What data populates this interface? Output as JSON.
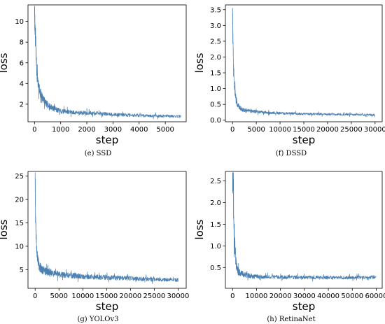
{
  "chart_data": [
    {
      "id": "ssd",
      "type": "line",
      "caption": "(e) SSD",
      "xlabel": "step",
      "ylabel": "loss",
      "xlim": [
        -250,
        5800
      ],
      "ylim": [
        0.3,
        11.6
      ],
      "xticks": [
        0,
        1000,
        2000,
        3000,
        4000,
        5000
      ],
      "xtick_labels": [
        "0",
        "1000",
        "2000",
        "3000",
        "4000",
        "5000"
      ],
      "yticks": [
        2,
        4,
        6,
        8,
        10
      ],
      "ytick_labels": [
        "2",
        "4",
        "6",
        "8",
        "10"
      ],
      "grid": false,
      "series": [
        {
          "color": "#4a7fb0",
          "x": [
            0,
            20,
            40,
            60,
            80,
            100,
            150,
            200,
            300,
            400,
            500,
            700,
            1000,
            1500,
            2000,
            2500,
            3000,
            3500,
            4000,
            4500,
            5000,
            5600
          ],
          "y": [
            11.2,
            9.5,
            8.0,
            6.8,
            5.5,
            4.6,
            3.8,
            3.3,
            2.6,
            2.2,
            1.9,
            1.6,
            1.35,
            1.2,
            1.15,
            1.1,
            1.0,
            0.95,
            0.92,
            0.88,
            0.85,
            0.82
          ],
          "noise": [
            1.6,
            1.3,
            1.1,
            1.0,
            0.9,
            0.8,
            0.7,
            0.6,
            0.5,
            0.45,
            0.4,
            0.35,
            0.3,
            0.25,
            0.25,
            0.22,
            0.2,
            0.2,
            0.2,
            0.18,
            0.18,
            0.18
          ]
        }
      ]
    },
    {
      "id": "dssd",
      "type": "line",
      "caption": "(f) DSSD",
      "xlabel": "step",
      "ylabel": "loss",
      "xlim": [
        -1500,
        31500
      ],
      "ylim": [
        -0.05,
        3.65
      ],
      "xticks": [
        0,
        5000,
        10000,
        15000,
        20000,
        25000,
        30000
      ],
      "xtick_labels": [
        "0",
        "5000",
        "10000",
        "15000",
        "20000",
        "25000",
        "30000"
      ],
      "yticks": [
        0.0,
        0.5,
        1.0,
        1.5,
        2.0,
        2.5,
        3.0,
        3.5
      ],
      "ytick_labels": [
        "0.0",
        "0.5",
        "1.0",
        "1.5",
        "2.0",
        "2.5",
        "3.0",
        "3.5"
      ],
      "grid": false,
      "series": [
        {
          "color": "#4a7fb0",
          "x": [
            0,
            100,
            200,
            400,
            700,
            1000,
            1500,
            2000,
            3000,
            5000,
            8000,
            10000,
            15000,
            20000,
            25000,
            30000
          ],
          "y": [
            3.45,
            2.6,
            1.8,
            1.1,
            0.7,
            0.5,
            0.4,
            0.33,
            0.3,
            0.27,
            0.24,
            0.22,
            0.2,
            0.19,
            0.18,
            0.17
          ],
          "noise": [
            0.4,
            0.35,
            0.3,
            0.25,
            0.18,
            0.12,
            0.09,
            0.08,
            0.07,
            0.06,
            0.05,
            0.05,
            0.045,
            0.04,
            0.04,
            0.04
          ]
        }
      ]
    },
    {
      "id": "yolov3",
      "type": "line",
      "caption": "(g) YOLOv3",
      "xlabel": "step",
      "ylabel": "loss",
      "xlim": [
        -1500,
        31700
      ],
      "ylim": [
        1.0,
        26.0
      ],
      "xticks": [
        0,
        5000,
        10000,
        15000,
        20000,
        25000,
        30000
      ],
      "xtick_labels": [
        "0",
        "5000",
        "10000",
        "15000",
        "20000",
        "25000",
        "30000"
      ],
      "yticks": [
        5,
        10,
        15,
        20,
        25
      ],
      "ytick_labels": [
        "5",
        "10",
        "15",
        "20",
        "25"
      ],
      "grid": false,
      "series": [
        {
          "color": "#4a7fb0",
          "x": [
            0,
            100,
            200,
            400,
            700,
            1000,
            1500,
            2000,
            3000,
            5000,
            8000,
            10000,
            15000,
            20000,
            25000,
            30000
          ],
          "y": [
            24.5,
            16.0,
            12.0,
            8.5,
            6.5,
            5.5,
            5.0,
            4.7,
            4.4,
            4.0,
            3.7,
            3.5,
            3.3,
            3.1,
            2.9,
            2.8
          ],
          "noise": [
            3.0,
            2.5,
            2.2,
            1.8,
            1.5,
            1.3,
            1.2,
            1.1,
            1.0,
            0.9,
            0.8,
            0.7,
            0.65,
            0.6,
            0.55,
            0.5
          ]
        }
      ]
    },
    {
      "id": "retinanet",
      "type": "line",
      "caption": "(h) RetinaNet",
      "xlabel": "step",
      "ylabel": "loss",
      "xlim": [
        -3000,
        62500
      ],
      "ylim": [
        0.02,
        2.72
      ],
      "xticks": [
        0,
        10000,
        20000,
        30000,
        40000,
        50000,
        60000
      ],
      "xtick_labels": [
        "0",
        "10000",
        "20000",
        "30000",
        "40000",
        "50000",
        "60000"
      ],
      "yticks": [
        0.5,
        1.0,
        1.5,
        2.0,
        2.5
      ],
      "ytick_labels": [
        "0.5",
        "1.0",
        "1.5",
        "2.0",
        "2.5"
      ],
      "grid": false,
      "series": [
        {
          "color": "#4a7fb0",
          "x": [
            0,
            300,
            600,
            1000,
            1500,
            2000,
            3000,
            5000,
            8000,
            10000,
            20000,
            30000,
            40000,
            50000,
            60000
          ],
          "y": [
            2.55,
            2.6,
            1.3,
            0.9,
            0.6,
            0.45,
            0.38,
            0.33,
            0.3,
            0.29,
            0.28,
            0.27,
            0.27,
            0.27,
            0.28
          ],
          "noise": [
            0.5,
            0.5,
            0.5,
            0.35,
            0.2,
            0.15,
            0.1,
            0.08,
            0.07,
            0.06,
            0.05,
            0.05,
            0.05,
            0.05,
            0.05
          ]
        }
      ]
    }
  ]
}
